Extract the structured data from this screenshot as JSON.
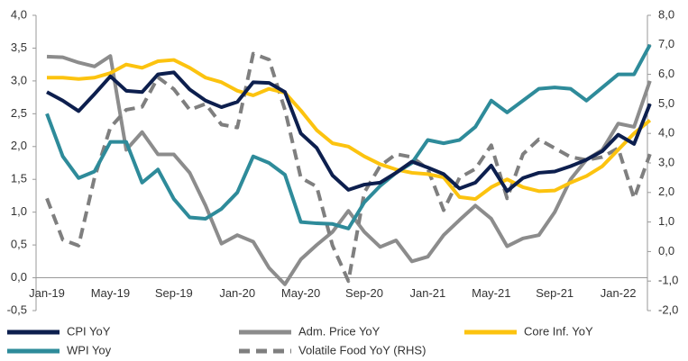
{
  "chart_data": {
    "type": "line",
    "categories": [
      "Jan-19",
      null,
      null,
      null,
      "May-19",
      null,
      null,
      null,
      "Sep-19",
      null,
      null,
      null,
      "Jan-20",
      null,
      null,
      null,
      "May-20",
      null,
      null,
      null,
      "Sep-20",
      null,
      null,
      null,
      "Jan-21",
      null,
      null,
      null,
      "May-21",
      null,
      null,
      null,
      "Sep-21",
      null,
      null,
      null,
      "Jan-22",
      null,
      null
    ],
    "ylim": [
      -0.5,
      4.0
    ],
    "yticks": [
      {
        "value": -0.5,
        "label": "-0,5"
      },
      {
        "value": 0.0,
        "label": "0,0"
      },
      {
        "value": 0.5,
        "label": "0,5"
      },
      {
        "value": 1.0,
        "label": "1,0"
      },
      {
        "value": 1.5,
        "label": "1,5"
      },
      {
        "value": 2.0,
        "label": "2,0"
      },
      {
        "value": 2.5,
        "label": "2,5"
      },
      {
        "value": 3.0,
        "label": "3,0"
      },
      {
        "value": 3.5,
        "label": "3,5"
      },
      {
        "value": 4.0,
        "label": "4,0"
      }
    ],
    "y2lim": [
      -2.0,
      8.0
    ],
    "y2ticks": [
      {
        "value": -2.0,
        "label": "-2,0"
      },
      {
        "value": -1.0,
        "label": "-1,0"
      },
      {
        "value": 0.0,
        "label": "0,0"
      },
      {
        "value": 1.0,
        "label": "1,0"
      },
      {
        "value": 2.0,
        "label": "2,0"
      },
      {
        "value": 3.0,
        "label": "3,0"
      },
      {
        "value": 4.0,
        "label": "4,0"
      },
      {
        "value": 5.0,
        "label": "5,0"
      },
      {
        "value": 6.0,
        "label": "6,0"
      },
      {
        "value": 7.0,
        "label": "7,0"
      },
      {
        "value": 8.0,
        "label": "8,0"
      }
    ],
    "series": [
      {
        "name": "Adm. Price YoY",
        "color": "#8c8c8c",
        "values": [
          3.37,
          3.36,
          3.28,
          3.22,
          3.38,
          1.95,
          2.22,
          1.88,
          1.88,
          1.6,
          1.1,
          0.52,
          0.65,
          0.55,
          0.15,
          -0.1,
          0.28,
          0.5,
          0.7,
          1.02,
          0.7,
          0.47,
          0.57,
          0.25,
          0.32,
          0.65,
          0.88,
          1.1,
          0.9,
          0.48,
          0.6,
          0.65,
          1.0,
          1.5,
          1.8,
          1.95,
          2.35,
          2.3,
          3.0
        ]
      },
      {
        "name": "Volatile Food YoY (RHS)",
        "color": "#7f7f7f",
        "axis": "y2",
        "dashed": true,
        "values": [
          1.8,
          0.4,
          0.2,
          2.5,
          4.2,
          4.8,
          4.9,
          5.9,
          5.5,
          4.8,
          5.0,
          4.3,
          4.2,
          6.7,
          6.5,
          4.8,
          2.5,
          2.2,
          0.2,
          -1.0,
          2.0,
          2.9,
          3.3,
          3.2,
          2.8,
          1.4,
          2.5,
          2.8,
          3.6,
          1.8,
          3.3,
          3.8,
          3.5,
          3.2,
          3.1,
          3.2,
          3.5,
          1.8,
          3.3
        ]
      },
      {
        "name": "Core Inf. YoY",
        "color": "#fcc30f",
        "values": [
          3.05,
          3.05,
          3.03,
          3.05,
          3.12,
          3.25,
          3.2,
          3.3,
          3.32,
          3.2,
          3.05,
          2.98,
          2.85,
          2.78,
          2.88,
          2.82,
          2.55,
          2.25,
          2.05,
          2.0,
          1.85,
          1.73,
          1.65,
          1.6,
          1.58,
          1.53,
          1.23,
          1.2,
          1.38,
          1.5,
          1.38,
          1.32,
          1.33,
          1.45,
          1.55,
          1.7,
          1.95,
          2.2,
          2.4
        ]
      },
      {
        "name": "WPI Yoy",
        "color": "#2e8b9a",
        "values": [
          2.5,
          1.85,
          1.52,
          1.62,
          2.07,
          2.07,
          1.45,
          1.65,
          1.2,
          0.92,
          0.9,
          1.05,
          1.3,
          1.85,
          1.75,
          1.57,
          0.85,
          0.83,
          0.82,
          0.75,
          1.15,
          1.4,
          1.6,
          1.75,
          2.1,
          2.05,
          2.1,
          2.3,
          2.7,
          2.52,
          2.7,
          2.88,
          2.9,
          2.88,
          2.7,
          2.9,
          3.1,
          3.1,
          3.55
        ]
      },
      {
        "name": "CPI YoY",
        "color": "#0d1f4e",
        "values": [
          2.83,
          2.7,
          2.54,
          2.8,
          3.07,
          2.85,
          2.83,
          3.1,
          3.13,
          2.87,
          2.7,
          2.6,
          2.68,
          2.98,
          2.97,
          2.83,
          2.2,
          1.98,
          1.56,
          1.34,
          1.42,
          1.45,
          1.6,
          1.77,
          1.68,
          1.58,
          1.36,
          1.45,
          1.71,
          1.32,
          1.52,
          1.6,
          1.62,
          1.7,
          1.8,
          1.93,
          2.18,
          2.04,
          2.65
        ]
      }
    ]
  }
}
